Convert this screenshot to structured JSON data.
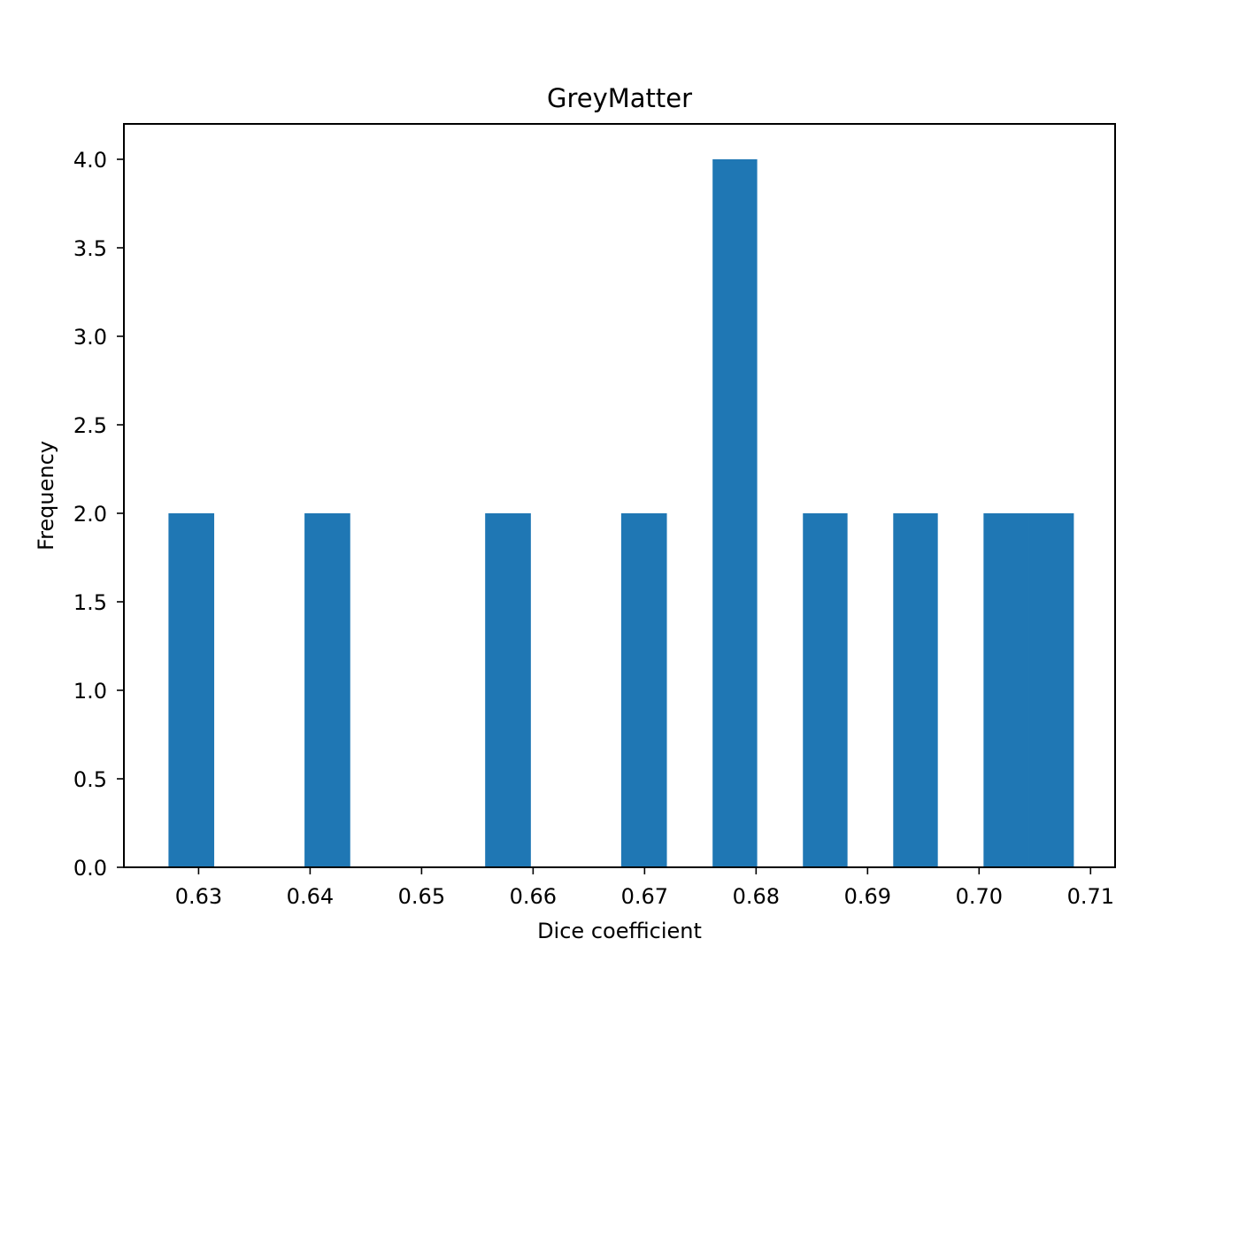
{
  "chart_data": {
    "type": "bar",
    "title": "GreyMatter",
    "xlabel": "Dice coefficient",
    "ylabel": "Frequency",
    "xlim": [
      0.6233,
      0.7122
    ],
    "ylim": [
      0,
      4.2
    ],
    "xticks": [
      0.63,
      0.64,
      0.65,
      0.66,
      0.67,
      0.68,
      0.69,
      0.7,
      0.71
    ],
    "xtick_labels": [
      "0.63",
      "0.64",
      "0.65",
      "0.66",
      "0.67",
      "0.68",
      "0.69",
      "0.70",
      "0.71"
    ],
    "yticks": [
      0.0,
      0.5,
      1.0,
      1.5,
      2.0,
      2.5,
      3.0,
      3.5,
      4.0
    ],
    "ytick_labels": [
      "0.0",
      "0.5",
      "1.0",
      "1.5",
      "2.0",
      "2.5",
      "3.0",
      "3.5",
      "4.0"
    ],
    "grid": false,
    "bar_color": "#1f77b4",
    "bins": [
      {
        "x0": 0.6273,
        "x1": 0.6314,
        "value": 2
      },
      {
        "x0": 0.6395,
        "x1": 0.6436,
        "value": 2
      },
      {
        "x0": 0.6557,
        "x1": 0.6598,
        "value": 2
      },
      {
        "x0": 0.6679,
        "x1": 0.672,
        "value": 2
      },
      {
        "x0": 0.6761,
        "x1": 0.6801,
        "value": 4
      },
      {
        "x0": 0.6842,
        "x1": 0.6882,
        "value": 2
      },
      {
        "x0": 0.6923,
        "x1": 0.6963,
        "value": 2
      },
      {
        "x0": 0.7004,
        "x1": 0.7045,
        "value": 2
      },
      {
        "x0": 0.7045,
        "x1": 0.7085,
        "value": 2
      }
    ]
  }
}
